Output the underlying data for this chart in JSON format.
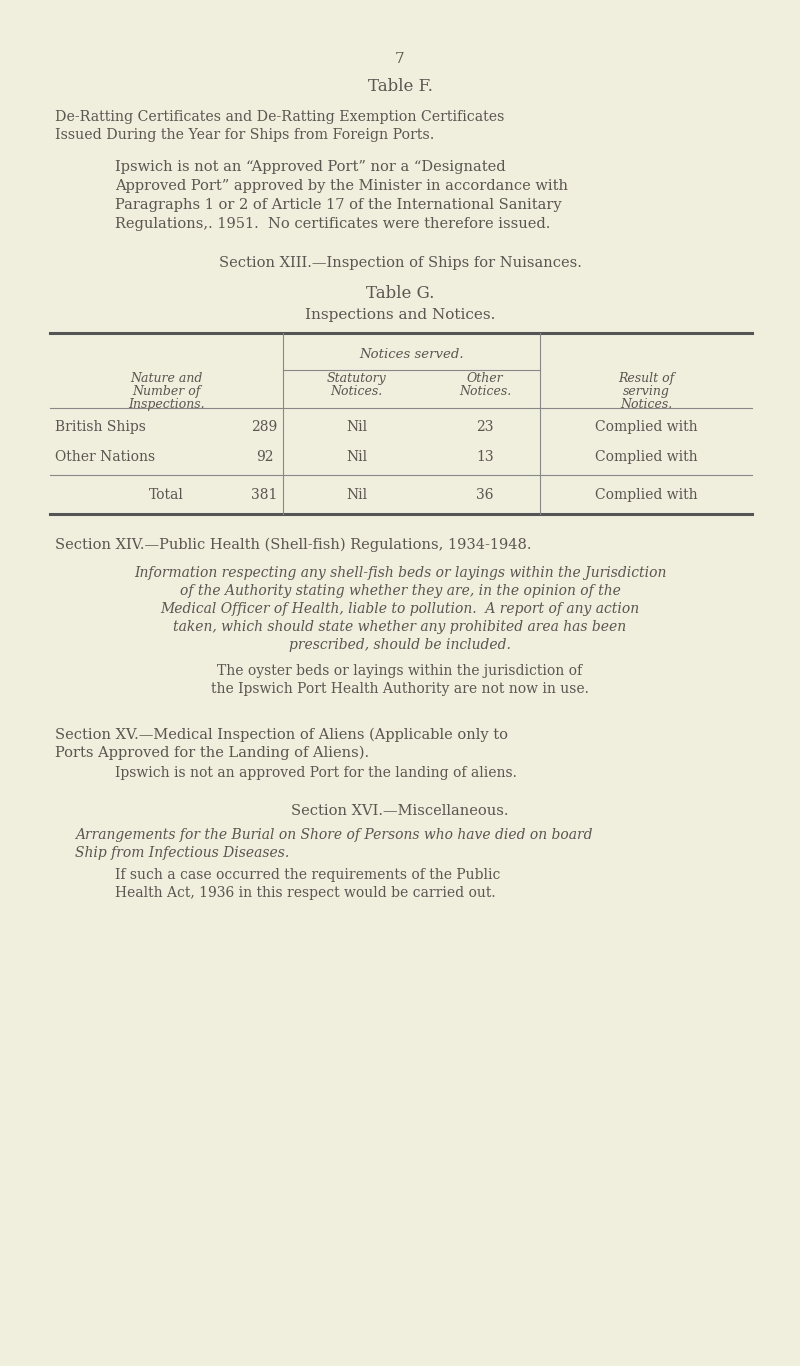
{
  "bg_color": "#f0eedd",
  "text_color": "#5a5650",
  "page_number": "7",
  "table_f_title": "Table F.",
  "table_f_h1": "De-Ratting Certificates and De-Ratting Exemption Certificates",
  "table_f_h2": "Issued During the Year for Ships from Foreign Ports.",
  "table_f_b1": "Ipswich is not an “Approved Port” nor a “Designated",
  "table_f_b2": "Approved Port” approved by the Minister in accordance with",
  "table_f_b3": "Paragraphs 1 or 2 of Article 17 of the International Sanitary",
  "table_f_b4": "Regulations,. 1951.  No certificates were therefore issued.",
  "section_xiii": "Section XIII.—Inspection of Ships for Nuisances.",
  "table_g_title": "Table G.",
  "table_g_subtitle": "Inspections and Notices.",
  "col_header_notices": "Notices served.",
  "col_header_nature": "Nature and",
  "col_header_number": "Number of",
  "col_header_inspections": "Inspections.",
  "col_header_statutory1": "Statutory",
  "col_header_statutory2": "Notices.",
  "col_header_other1": "Other",
  "col_header_other2": "Notices.",
  "col_header_result1": "Result of",
  "col_header_result2": "serving",
  "col_header_result3": "Notices.",
  "row1_label": "British Ships",
  "row1_num": "289",
  "row1_stat": "Nil",
  "row1_other": "23",
  "row1_result": "Complied with",
  "row2_label": "Other Nations",
  "row2_num": "92",
  "row2_stat": "Nil",
  "row2_other": "13",
  "row2_result": "Complied with",
  "row3_label": "Total",
  "row3_num": "381",
  "row3_stat": "Nil",
  "row3_other": "36",
  "row3_result": "Complied with",
  "section_xiv": "Section XIV.—Public Health (Shell-fish) Regulations, 1934-1948.",
  "section_xiv_i1": "Information respecting any shell-fish beds or layings within the Jurisdiction",
  "section_xiv_i2": "of the Authority stating whether they are, in the opinion of the",
  "section_xiv_i3": "Medical Officer of Health, liable to pollution.  A report of any action",
  "section_xiv_i4": "taken, which should state whether any prohibited area has been",
  "section_xiv_i5": "prescribed, should be included.",
  "section_xiv_b1": "The oyster beds or layings within the jurisdiction of",
  "section_xiv_b2": "the Ipswich Port Health Authority are not now in use.",
  "section_xv1": "Section XV.—Medical Inspection of Aliens (Applicable only to",
  "section_xv2": "Ports Approved for the Landing of Aliens).",
  "section_xv_body": "Ipswich is not an approved Port for the landing of aliens.",
  "section_xvi": "Section XVI.—Miscellaneous.",
  "section_xvi_i1": "Arrangements for the Burial on Shore of Persons who have died on board",
  "section_xvi_i2": "Ship from Infectious Diseases.",
  "section_xvi_b1": "If such a case occurred the requirements of the Public",
  "section_xvi_b2": "Health Act, 1936 in this respect would be carried out."
}
